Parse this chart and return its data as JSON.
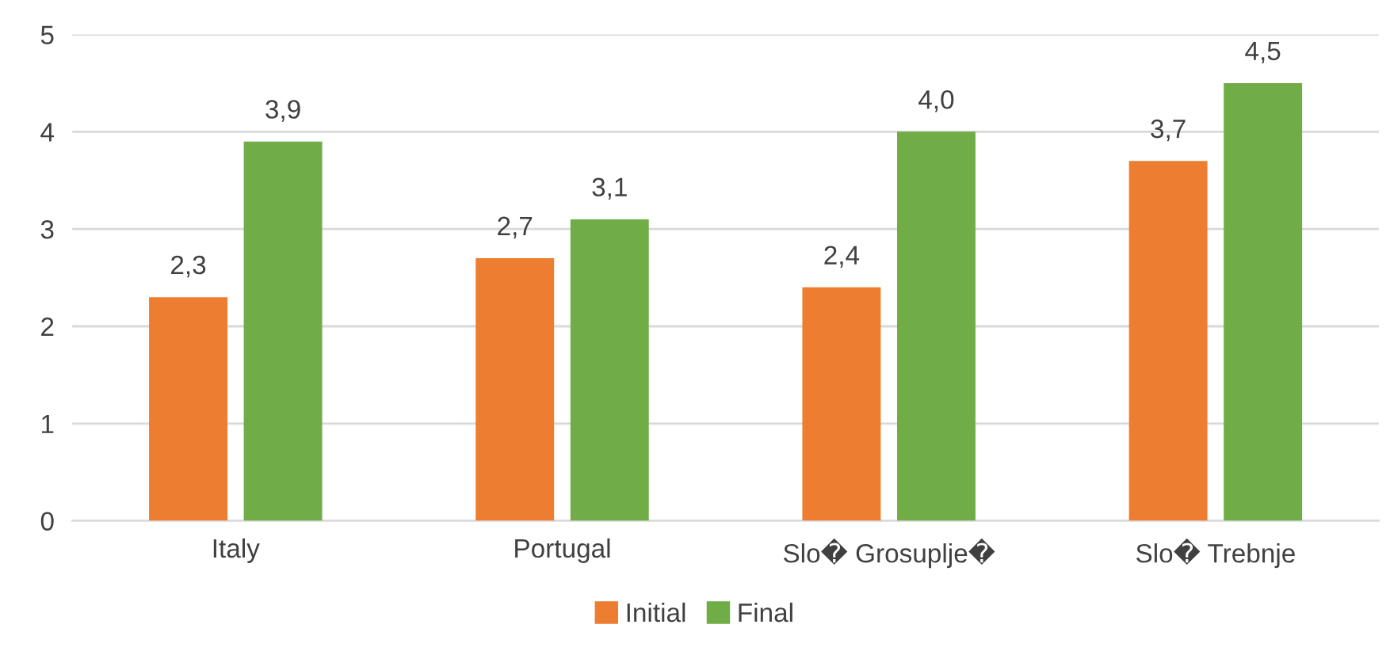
{
  "chart_data": {
    "type": "bar",
    "categories": [
      "Italy",
      "Portugal",
      "Slo� Grosuplje�",
      "Slo� Trebnje"
    ],
    "series": [
      {
        "name": "Initial",
        "color": "#ed7d31",
        "values": [
          2.3,
          2.7,
          2.4,
          3.7
        ],
        "value_labels": [
          "2,3",
          "2,7",
          "2,4",
          "3,7"
        ]
      },
      {
        "name": "Final",
        "color": "#70ad47",
        "values": [
          3.9,
          3.1,
          4.0,
          4.5
        ],
        "value_labels": [
          "3,9",
          "3,1",
          "4,0",
          "4,5"
        ]
      }
    ],
    "ylim": [
      0,
      5
    ],
    "yticks": [
      0,
      1,
      2,
      3,
      4,
      5
    ],
    "grid": "y",
    "legend": "bottom"
  }
}
